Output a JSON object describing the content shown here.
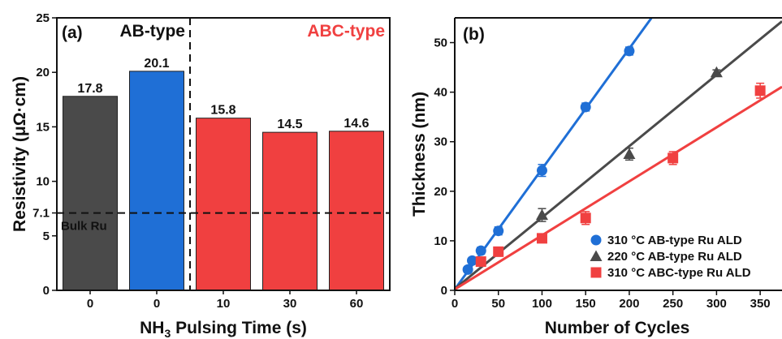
{
  "chart_data": [
    {
      "type": "bar",
      "panel_label": "(a)",
      "title": "",
      "xlabel": "NH₃ Pulsing Time (s)",
      "xlabel_main": "NH",
      "xlabel_sub": "3",
      "xlabel_rest": " Pulsing Time (s)",
      "ylabel": "Resistivity (μΩ·cm)",
      "ylim": [
        0,
        25
      ],
      "ytick_labels": [
        "0",
        "5",
        "10",
        "15",
        "20",
        "25"
      ],
      "yticks": [
        0,
        5,
        10,
        15,
        20,
        25
      ],
      "extra_ytick": {
        "value": 7.1,
        "label": "7.1"
      },
      "categories": [
        "0",
        "0",
        "10",
        "30",
        "60"
      ],
      "values": [
        17.8,
        20.1,
        15.8,
        14.5,
        14.6
      ],
      "value_labels": [
        "17.8",
        "20.1",
        "15.8",
        "14.5",
        "14.6"
      ],
      "bar_colors": [
        "#4a4a4a",
        "#1f6fd6",
        "#f04040",
        "#f04040",
        "#f04040"
      ],
      "reference_line": {
        "value": 7.1,
        "label": "Bulk Ru",
        "style": "dashed"
      },
      "groups": [
        {
          "label": "AB-type",
          "color": "#111111",
          "bars": [
            0,
            1
          ]
        },
        {
          "label": "ABC-type",
          "color": "#f04040",
          "bars": [
            2,
            3,
            4
          ]
        }
      ],
      "grid": false
    },
    {
      "type": "scatter",
      "panel_label": "(b)",
      "title": "",
      "xlabel": "Number of Cycles",
      "ylabel": "Thickness (nm)",
      "xlim": [
        0,
        375
      ],
      "ylim": [
        0,
        55
      ],
      "xticks": [
        0,
        50,
        100,
        150,
        200,
        250,
        300,
        350
      ],
      "xtick_labels": [
        "0",
        "50",
        "100",
        "150",
        "200",
        "250",
        "300",
        "350"
      ],
      "yticks": [
        0,
        10,
        20,
        30,
        40,
        50
      ],
      "ytick_labels": [
        "0",
        "10",
        "20",
        "30",
        "40",
        "50"
      ],
      "legend_position": "bottom-right",
      "grid": false,
      "series": [
        {
          "name": "310 °C AB-type Ru ALD",
          "color": "#1f6fd6",
          "marker": "circle",
          "x": [
            15,
            20,
            30,
            50,
            100,
            150,
            200
          ],
          "y": [
            4.2,
            6.0,
            8.0,
            12.0,
            24.2,
            37.0,
            48.3
          ],
          "err": [
            0.6,
            0.6,
            0.7,
            0.8,
            1.2,
            0.8,
            0.8
          ],
          "fit": {
            "slope": 0.243,
            "intercept": 0.2
          }
        },
        {
          "name": "220 °C AB-type Ru ALD",
          "color": "#4a4a4a",
          "marker": "triangle",
          "x": [
            100,
            200,
            300
          ],
          "y": [
            15.2,
            27.5,
            44.0
          ],
          "err": [
            1.3,
            1.2,
            0.5
          ],
          "fit": {
            "slope": 0.144,
            "intercept": 0.3
          }
        },
        {
          "name": "310 °C ABC-type Ru ALD",
          "color": "#f04040",
          "marker": "square",
          "x": [
            30,
            50,
            100,
            150,
            250,
            350
          ],
          "y": [
            5.8,
            7.8,
            10.5,
            14.6,
            26.7,
            40.3
          ],
          "err": [
            0.6,
            0.6,
            0.6,
            1.3,
            1.3,
            1.5
          ],
          "fit": {
            "slope": 0.109,
            "intercept": 0.2
          }
        }
      ]
    }
  ]
}
